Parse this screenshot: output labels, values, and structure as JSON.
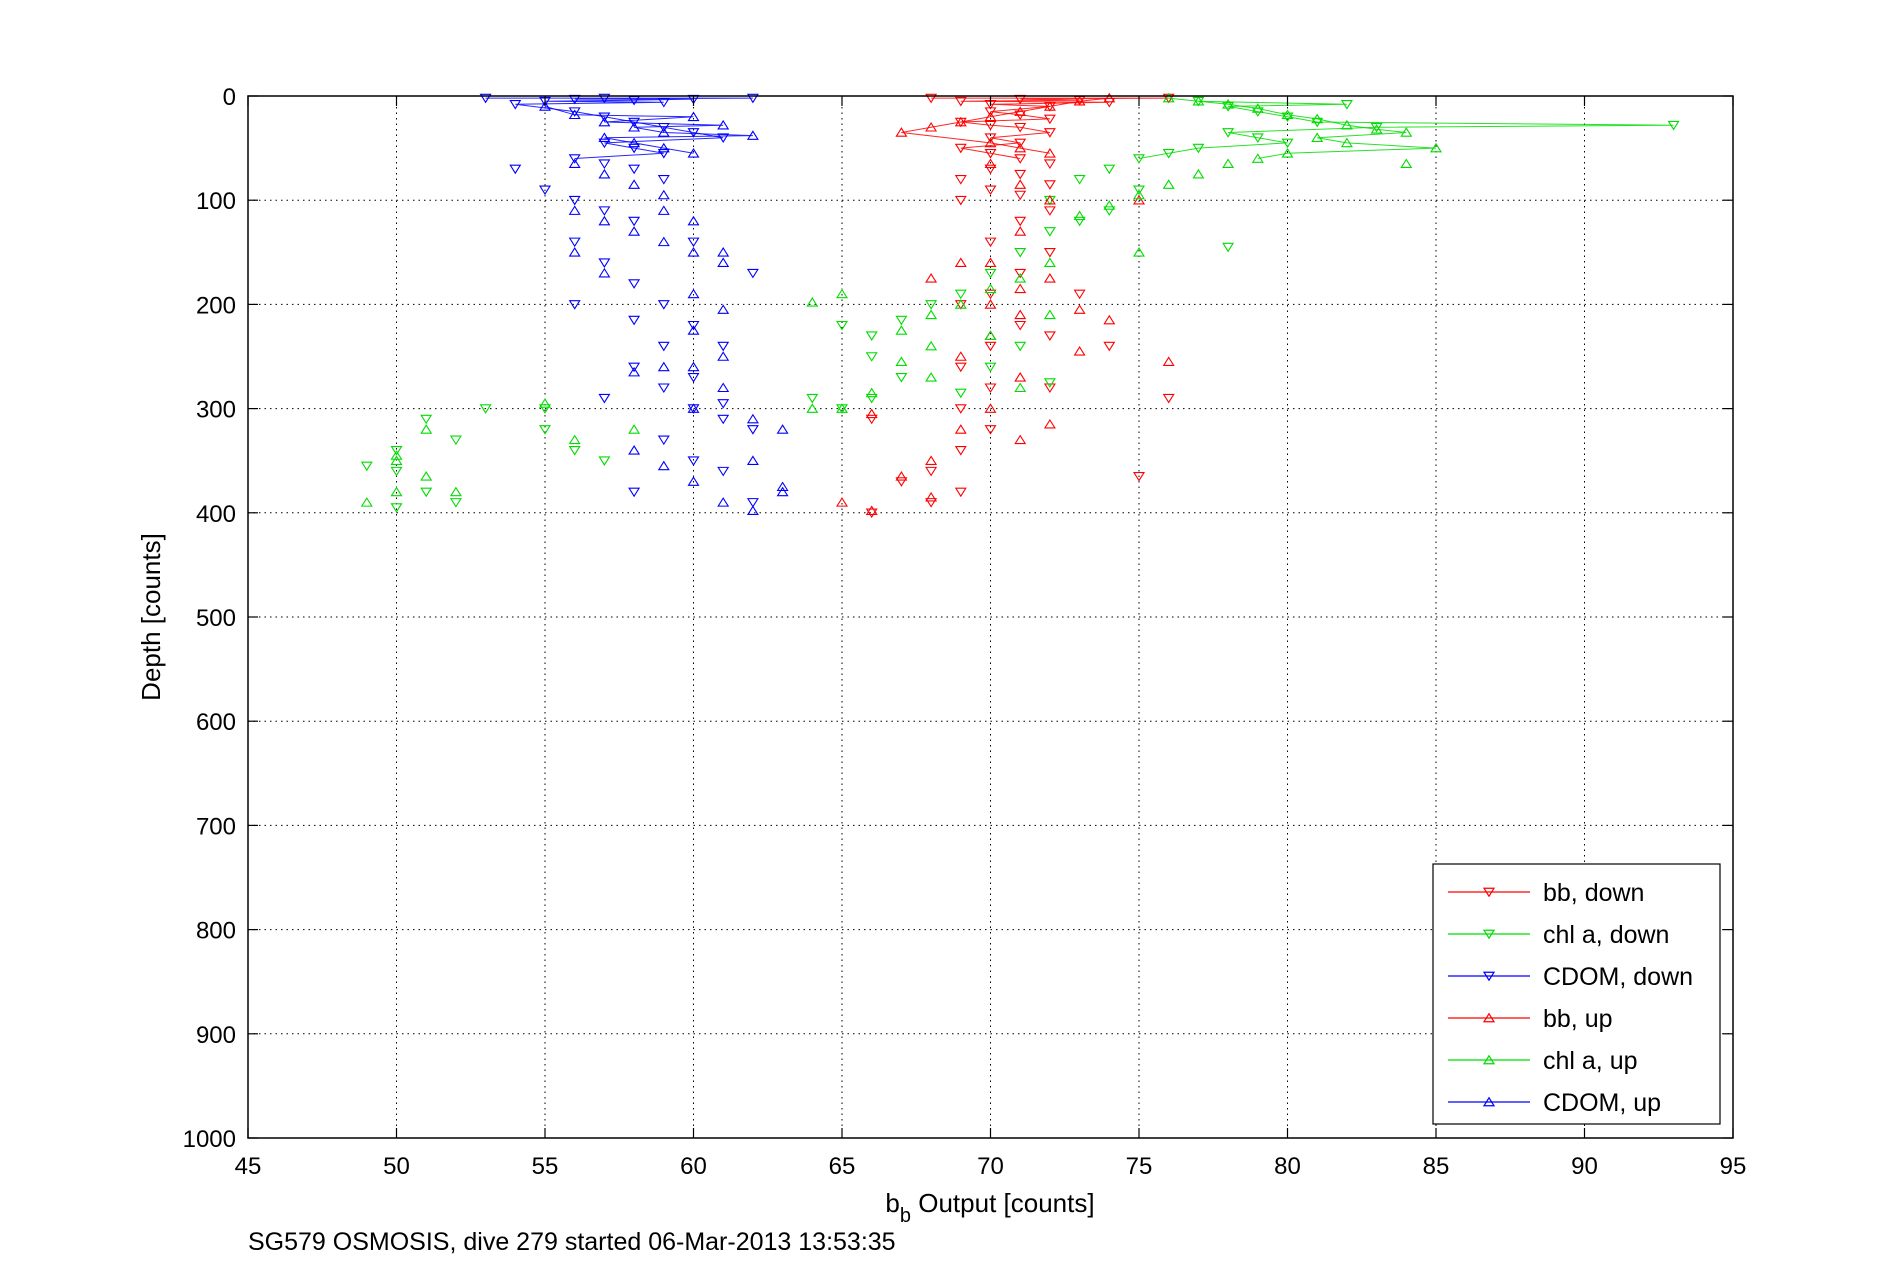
{
  "chart_data": {
    "type": "scatter",
    "xlabel": "b",
    "xlabel_sub": "b",
    "xlabel_rest": " Output [counts]",
    "ylabel": "Depth [counts]",
    "footer": "SG579 OSMOSIS, dive 279 started 06-Mar-2013 13:53:35",
    "xlim": [
      45,
      95
    ],
    "ylim": [
      0,
      1000
    ],
    "y_reversed": true,
    "xticks": [
      45,
      50,
      55,
      60,
      65,
      70,
      75,
      80,
      85,
      90,
      95
    ],
    "yticks": [
      0,
      100,
      200,
      300,
      400,
      500,
      600,
      700,
      800,
      900,
      1000
    ],
    "grid": true,
    "legend_position": "bottom-right",
    "series": [
      {
        "name": "bb, down",
        "color": "#ff0000",
        "marker": "triangle-down",
        "points": [
          [
            68,
            2
          ],
          [
            69,
            5
          ],
          [
            70,
            8
          ],
          [
            71,
            3
          ],
          [
            72,
            10
          ],
          [
            73,
            4
          ],
          [
            74,
            6
          ],
          [
            76,
            2
          ],
          [
            70,
            15
          ],
          [
            71,
            18
          ],
          [
            72,
            22
          ],
          [
            69,
            25
          ],
          [
            70,
            28
          ],
          [
            71,
            30
          ],
          [
            72,
            35
          ],
          [
            70,
            40
          ],
          [
            71,
            45
          ],
          [
            69,
            50
          ],
          [
            70,
            55
          ],
          [
            71,
            60
          ],
          [
            72,
            65
          ],
          [
            70,
            70
          ],
          [
            71,
            75
          ],
          [
            69,
            80
          ],
          [
            72,
            85
          ],
          [
            70,
            90
          ],
          [
            71,
            95
          ],
          [
            69,
            100
          ],
          [
            72,
            110
          ],
          [
            71,
            120
          ],
          [
            70,
            140
          ],
          [
            72,
            150
          ],
          [
            71,
            170
          ],
          [
            70,
            190
          ],
          [
            69,
            200
          ],
          [
            71,
            220
          ],
          [
            70,
            240
          ],
          [
            69,
            260
          ],
          [
            70,
            280
          ],
          [
            69,
            300
          ],
          [
            70,
            320
          ],
          [
            69,
            340
          ],
          [
            68,
            360
          ],
          [
            69,
            380
          ],
          [
            68,
            390
          ],
          [
            67,
            370
          ],
          [
            66,
            310
          ],
          [
            66,
            400
          ],
          [
            72,
            280
          ],
          [
            74,
            240
          ],
          [
            76,
            290
          ],
          [
            75,
            365
          ],
          [
            73,
            190
          ],
          [
            72,
            230
          ]
        ]
      },
      {
        "name": "chl a, down",
        "color": "#00dd00",
        "marker": "triangle-down",
        "points": [
          [
            77,
            5
          ],
          [
            78,
            10
          ],
          [
            79,
            15
          ],
          [
            80,
            20
          ],
          [
            81,
            25
          ],
          [
            82,
            8
          ],
          [
            83,
            30
          ],
          [
            93,
            28
          ],
          [
            78,
            35
          ],
          [
            79,
            40
          ],
          [
            80,
            45
          ],
          [
            77,
            50
          ],
          [
            76,
            55
          ],
          [
            75,
            60
          ],
          [
            74,
            70
          ],
          [
            73,
            80
          ],
          [
            75,
            90
          ],
          [
            72,
            100
          ],
          [
            74,
            110
          ],
          [
            73,
            120
          ],
          [
            72,
            130
          ],
          [
            71,
            150
          ],
          [
            70,
            170
          ],
          [
            69,
            190
          ],
          [
            68,
            200
          ],
          [
            67,
            215
          ],
          [
            66,
            230
          ],
          [
            65,
            220
          ],
          [
            66,
            250
          ],
          [
            67,
            270
          ],
          [
            66,
            290
          ],
          [
            65,
            300
          ],
          [
            64,
            290
          ],
          [
            70,
            260
          ],
          [
            71,
            240
          ],
          [
            72,
            275
          ],
          [
            69,
            285
          ],
          [
            78,
            145
          ],
          [
            53,
            300
          ],
          [
            52,
            330
          ],
          [
            51,
            310
          ],
          [
            50,
            340
          ],
          [
            50,
            360
          ],
          [
            49,
            355
          ],
          [
            50,
            395
          ],
          [
            51,
            380
          ],
          [
            52,
            390
          ],
          [
            55,
            300
          ],
          [
            56,
            340
          ],
          [
            57,
            350
          ],
          [
            55,
            320
          ]
        ]
      },
      {
        "name": "CDOM, down",
        "color": "#0000ff",
        "marker": "triangle-down",
        "points": [
          [
            53,
            2
          ],
          [
            54,
            8
          ],
          [
            55,
            5
          ],
          [
            56,
            3
          ],
          [
            57,
            2
          ],
          [
            58,
            4
          ],
          [
            59,
            6
          ],
          [
            60,
            3
          ],
          [
            62,
            2
          ],
          [
            56,
            15
          ],
          [
            57,
            20
          ],
          [
            58,
            25
          ],
          [
            59,
            30
          ],
          [
            60,
            35
          ],
          [
            61,
            40
          ],
          [
            57,
            45
          ],
          [
            58,
            50
          ],
          [
            59,
            55
          ],
          [
            56,
            60
          ],
          [
            57,
            65
          ],
          [
            58,
            70
          ],
          [
            59,
            80
          ],
          [
            54,
            70
          ],
          [
            55,
            90
          ],
          [
            56,
            100
          ],
          [
            57,
            110
          ],
          [
            58,
            120
          ],
          [
            56,
            140
          ],
          [
            57,
            160
          ],
          [
            58,
            180
          ],
          [
            59,
            200
          ],
          [
            60,
            220
          ],
          [
            61,
            240
          ],
          [
            58,
            260
          ],
          [
            59,
            280
          ],
          [
            57,
            290
          ],
          [
            60,
            300
          ],
          [
            61,
            310
          ],
          [
            62,
            320
          ],
          [
            59,
            330
          ],
          [
            60,
            350
          ],
          [
            61,
            360
          ],
          [
            58,
            380
          ],
          [
            62,
            390
          ],
          [
            56,
            200
          ],
          [
            58,
            215
          ],
          [
            59,
            240
          ],
          [
            60,
            270
          ],
          [
            61,
            295
          ],
          [
            62,
            170
          ],
          [
            60,
            140
          ]
        ]
      },
      {
        "name": "bb, up",
        "color": "#ff0000",
        "marker": "triangle-up",
        "points": [
          [
            67,
            35
          ],
          [
            68,
            30
          ],
          [
            69,
            25
          ],
          [
            70,
            20
          ],
          [
            71,
            15
          ],
          [
            72,
            10
          ],
          [
            73,
            5
          ],
          [
            74,
            2
          ],
          [
            70,
            45
          ],
          [
            71,
            50
          ],
          [
            72,
            55
          ],
          [
            70,
            65
          ],
          [
            71,
            85
          ],
          [
            72,
            100
          ],
          [
            71,
            130
          ],
          [
            70,
            160
          ],
          [
            72,
            175
          ],
          [
            71,
            210
          ],
          [
            70,
            230
          ],
          [
            69,
            250
          ],
          [
            71,
            270
          ],
          [
            70,
            300
          ],
          [
            69,
            320
          ],
          [
            68,
            350
          ],
          [
            67,
            365
          ],
          [
            68,
            385
          ],
          [
            66,
            305
          ],
          [
            65,
            390
          ],
          [
            66,
            398
          ],
          [
            73,
            205
          ],
          [
            74,
            215
          ],
          [
            73,
            245
          ],
          [
            72,
            315
          ],
          [
            71,
            330
          ],
          [
            75,
            100
          ],
          [
            76,
            255
          ],
          [
            69,
            160
          ],
          [
            68,
            175
          ],
          [
            70,
            200
          ],
          [
            71,
            185
          ]
        ]
      },
      {
        "name": "chl a, up",
        "color": "#00dd00",
        "marker": "triangle-up",
        "points": [
          [
            76,
            2
          ],
          [
            77,
            5
          ],
          [
            78,
            8
          ],
          [
            79,
            12
          ],
          [
            80,
            18
          ],
          [
            81,
            22
          ],
          [
            82,
            28
          ],
          [
            83,
            32
          ],
          [
            84,
            35
          ],
          [
            85,
            50
          ],
          [
            84,
            65
          ],
          [
            82,
            45
          ],
          [
            81,
            40
          ],
          [
            80,
            55
          ],
          [
            79,
            60
          ],
          [
            78,
            65
          ],
          [
            77,
            75
          ],
          [
            76,
            85
          ],
          [
            75,
            95
          ],
          [
            74,
            105
          ],
          [
            73,
            115
          ],
          [
            75,
            150
          ],
          [
            72,
            160
          ],
          [
            71,
            175
          ],
          [
            70,
            185
          ],
          [
            69,
            200
          ],
          [
            68,
            210
          ],
          [
            67,
            225
          ],
          [
            68,
            240
          ],
          [
            67,
            255
          ],
          [
            68,
            270
          ],
          [
            66,
            285
          ],
          [
            65,
            300
          ],
          [
            64,
            300
          ],
          [
            65,
            190
          ],
          [
            64,
            198
          ],
          [
            72,
            210
          ],
          [
            70,
            230
          ],
          [
            71,
            280
          ],
          [
            50,
            350
          ],
          [
            51,
            365
          ],
          [
            49,
            390
          ],
          [
            50,
            380
          ],
          [
            52,
            380
          ],
          [
            56,
            330
          ],
          [
            58,
            320
          ],
          [
            55,
            295
          ],
          [
            51,
            320
          ],
          [
            50,
            345
          ]
        ]
      },
      {
        "name": "CDOM, up",
        "color": "#0000ff",
        "marker": "triangle-up",
        "points": [
          [
            55,
            10
          ],
          [
            56,
            18
          ],
          [
            57,
            25
          ],
          [
            58,
            30
          ],
          [
            59,
            35
          ],
          [
            60,
            20
          ],
          [
            61,
            28
          ],
          [
            62,
            38
          ],
          [
            57,
            40
          ],
          [
            58,
            45
          ],
          [
            59,
            50
          ],
          [
            60,
            55
          ],
          [
            56,
            65
          ],
          [
            57,
            75
          ],
          [
            58,
            85
          ],
          [
            59,
            95
          ],
          [
            56,
            110
          ],
          [
            57,
            120
          ],
          [
            58,
            130
          ],
          [
            59,
            140
          ],
          [
            60,
            150
          ],
          [
            61,
            160
          ],
          [
            60,
            190
          ],
          [
            61,
            205
          ],
          [
            60,
            225
          ],
          [
            61,
            250
          ],
          [
            60,
            260
          ],
          [
            61,
            280
          ],
          [
            60,
            300
          ],
          [
            62,
            310
          ],
          [
            63,
            320
          ],
          [
            62,
            350
          ],
          [
            63,
            375
          ],
          [
            61,
            390
          ],
          [
            62,
            398
          ],
          [
            60,
            370
          ],
          [
            59,
            355
          ],
          [
            58,
            340
          ],
          [
            57,
            170
          ],
          [
            56,
            150
          ],
          [
            59,
            260
          ],
          [
            58,
            265
          ],
          [
            60,
            120
          ],
          [
            61,
            150
          ],
          [
            59,
            110
          ],
          [
            63,
            380
          ]
        ]
      }
    ]
  }
}
